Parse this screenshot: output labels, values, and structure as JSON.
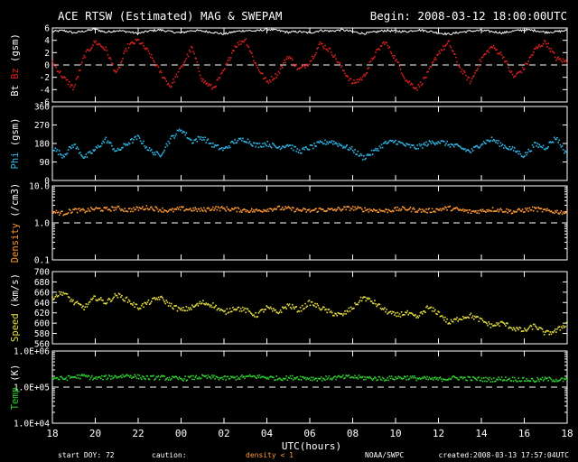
{
  "header": {
    "title": "ACE RTSW (Estimated) MAG & SWEPAM",
    "begin": "Begin: 2008-03-12 18:00:00UTC"
  },
  "footer": {
    "start_doy": "start DOY:  72",
    "caution": "caution:",
    "density_note": "density < 1",
    "source": "NOAA/SWPC",
    "created": "created:2008-03-13 17:57:04UTC"
  },
  "colors": {
    "bt": "#ffffff",
    "bz": "#e02020",
    "phi": "#30b8e8",
    "density": "#ff9933",
    "speed": "#e8e040",
    "temp": "#30d030",
    "axes": "#ffffff"
  },
  "chart_data": {
    "type": "scatter",
    "title": "ACE RTSW (Estimated) MAG & SWEPAM",
    "xlabel": "UTC(hours)",
    "x_ticks": [
      "18",
      "20",
      "22",
      "00",
      "02",
      "04",
      "06",
      "08",
      "10",
      "12",
      "14",
      "16",
      "18"
    ],
    "x_range_hours": [
      0,
      24
    ],
    "panels": [
      {
        "id": "mag",
        "ylabel_parts": [
          {
            "text": "Bt",
            "color": "#ffffff"
          },
          {
            "text": " Bz",
            "color": "#e02020"
          },
          {
            "text": " (gsm)",
            "color": "#ffffff"
          }
        ],
        "ylim": [
          -6,
          6
        ],
        "yticks": [
          6,
          4,
          2,
          0,
          -2,
          -4,
          -6
        ],
        "ytick_labels": [
          "6",
          "4",
          "2",
          "0",
          "-2",
          "-4",
          "-6"
        ],
        "ref_line": 0,
        "series": [
          {
            "key": "bt",
            "color": "#ffffff",
            "marker": "line",
            "values": [
              5.4,
              5.6,
              5.2,
              5.5,
              5.8,
              5.3,
              5.6,
              5.4,
              5.1,
              5.5,
              5.7,
              5.4,
              5.2,
              5.6,
              5.5,
              5.3,
              5.0,
              5.4,
              5.6,
              5.5,
              5.8,
              5.6,
              5.3,
              5.4,
              5.2,
              5.6,
              5.5,
              5.7,
              5.4,
              5.1,
              5.3,
              5.6,
              5.5,
              5.4,
              5.7,
              5.5,
              5.2,
              5.0,
              5.3,
              5.5,
              5.6,
              5.4,
              5.2,
              5.5,
              5.7,
              5.6,
              5.3,
              5.4,
              5.6
            ]
          },
          {
            "key": "bz",
            "color": "#e02020",
            "values": [
              0.5,
              -2.0,
              -3.8,
              1.5,
              3.8,
              2.5,
              -1.5,
              3.0,
              4.0,
              2.0,
              -1.0,
              -3.5,
              -0.5,
              2.8,
              -2.5,
              -3.8,
              -1.0,
              3.0,
              4.2,
              0.0,
              -2.8,
              -1.5,
              1.5,
              -0.8,
              0.5,
              3.5,
              2.2,
              -0.5,
              -3.0,
              -2.0,
              1.5,
              3.8,
              1.0,
              -2.5,
              -3.8,
              -1.5,
              2.0,
              3.6,
              -0.5,
              -2.8,
              1.0,
              3.0,
              1.5,
              -2.0,
              -0.5,
              2.5,
              3.8,
              1.0,
              0.5
            ]
          }
        ]
      },
      {
        "id": "phi",
        "ylabel_parts": [
          {
            "text": "Phi",
            "color": "#30b8e8"
          },
          {
            "text": " (gsm)",
            "color": "#ffffff"
          }
        ],
        "ylim": [
          0,
          360
        ],
        "yticks": [
          360,
          270,
          180,
          90,
          0
        ],
        "ytick_labels": [
          "360",
          "270",
          "180",
          "90",
          "0"
        ],
        "series": [
          {
            "key": "phi",
            "color": "#30b8e8",
            "values": [
              160,
              120,
              175,
              110,
              150,
              200,
              140,
              180,
              210,
              150,
              120,
              200,
              250,
              190,
              210,
              170,
              150,
              190,
              200,
              170,
              180,
              160,
              175,
              140,
              160,
              180,
              190,
              170,
              150,
              110,
              140,
              180,
              190,
              170,
              160,
              180,
              190,
              175,
              160,
              140,
              180,
              200,
              170,
              150,
              120,
              175,
              160,
              210,
              120
            ]
          }
        ]
      },
      {
        "id": "density",
        "ylabel_parts": [
          {
            "text": "Density",
            "color": "#ff9933"
          },
          {
            "text": " (/cm3)",
            "color": "#ffffff"
          }
        ],
        "log": true,
        "ylim": [
          0.1,
          10.0
        ],
        "yticks": [
          10.0,
          1.0,
          0.1
        ],
        "ytick_labels": [
          "10.0",
          "1.0",
          "0.1"
        ],
        "ref_line": 1.0,
        "series": [
          {
            "key": "density",
            "color": "#ff9933",
            "values": [
              2.0,
              1.8,
              2.2,
              2.1,
              2.4,
              2.3,
              2.5,
              2.2,
              2.4,
              2.6,
              2.3,
              2.1,
              2.4,
              2.3,
              2.2,
              2.5,
              2.4,
              2.3,
              2.2,
              2.1,
              2.3,
              2.5,
              2.4,
              2.2,
              2.1,
              2.3,
              2.2,
              2.4,
              2.5,
              2.3,
              2.2,
              2.1,
              2.3,
              2.4,
              2.2,
              2.1,
              2.3,
              2.5,
              2.2,
              2.0,
              2.1,
              2.3,
              2.2,
              2.0,
              2.2,
              2.4,
              2.1,
              2.0,
              1.9
            ]
          }
        ]
      },
      {
        "id": "speed",
        "ylabel_parts": [
          {
            "text": "Speed",
            "color": "#e8e040"
          },
          {
            "text": " (km/s)",
            "color": "#ffffff"
          }
        ],
        "ylim": [
          560,
          700
        ],
        "yticks": [
          700,
          680,
          660,
          640,
          620,
          600,
          580,
          560
        ],
        "ytick_labels": [
          "700",
          "680",
          "660",
          "640",
          "620",
          "600",
          "580",
          "560"
        ],
        "series": [
          {
            "key": "speed",
            "color": "#e8e040",
            "values": [
              650,
              660,
              640,
              630,
              650,
              640,
              655,
              645,
              630,
              640,
              650,
              635,
              625,
              630,
              640,
              635,
              620,
              630,
              625,
              615,
              630,
              620,
              635,
              625,
              640,
              630,
              620,
              615,
              630,
              650,
              640,
              625,
              615,
              620,
              610,
              630,
              620,
              600,
              610,
              615,
              605,
              595,
              600,
              590,
              585,
              595,
              580,
              585,
              600
            ]
          }
        ]
      },
      {
        "id": "temp",
        "ylabel_parts": [
          {
            "text": "Temp",
            "color": "#30d030"
          },
          {
            "text": " (K)",
            "color": "#ffffff"
          }
        ],
        "log": true,
        "ylim": [
          10000,
          1000000
        ],
        "yticks": [
          1000000,
          100000,
          10000
        ],
        "ytick_labels": [
          "1.0E+06",
          "1.0E+05",
          "1.0E+04"
        ],
        "ref_line": 100000,
        "series": [
          {
            "key": "temp",
            "color": "#30d030",
            "values": [
              180000,
              170000,
              190000,
              200000,
              175000,
              185000,
              195000,
              210000,
              190000,
              180000,
              185000,
              175000,
              170000,
              180000,
              190000,
              185000,
              175000,
              180000,
              190000,
              195000,
              185000,
              175000,
              180000,
              185000,
              175000,
              170000,
              180000,
              185000,
              190000,
              180000,
              175000,
              170000,
              180000,
              185000,
              175000,
              170000,
              165000,
              175000,
              180000,
              170000,
              165000,
              160000,
              170000,
              165000,
              160000,
              155000,
              165000,
              160000,
              155000
            ]
          }
        ]
      }
    ]
  }
}
